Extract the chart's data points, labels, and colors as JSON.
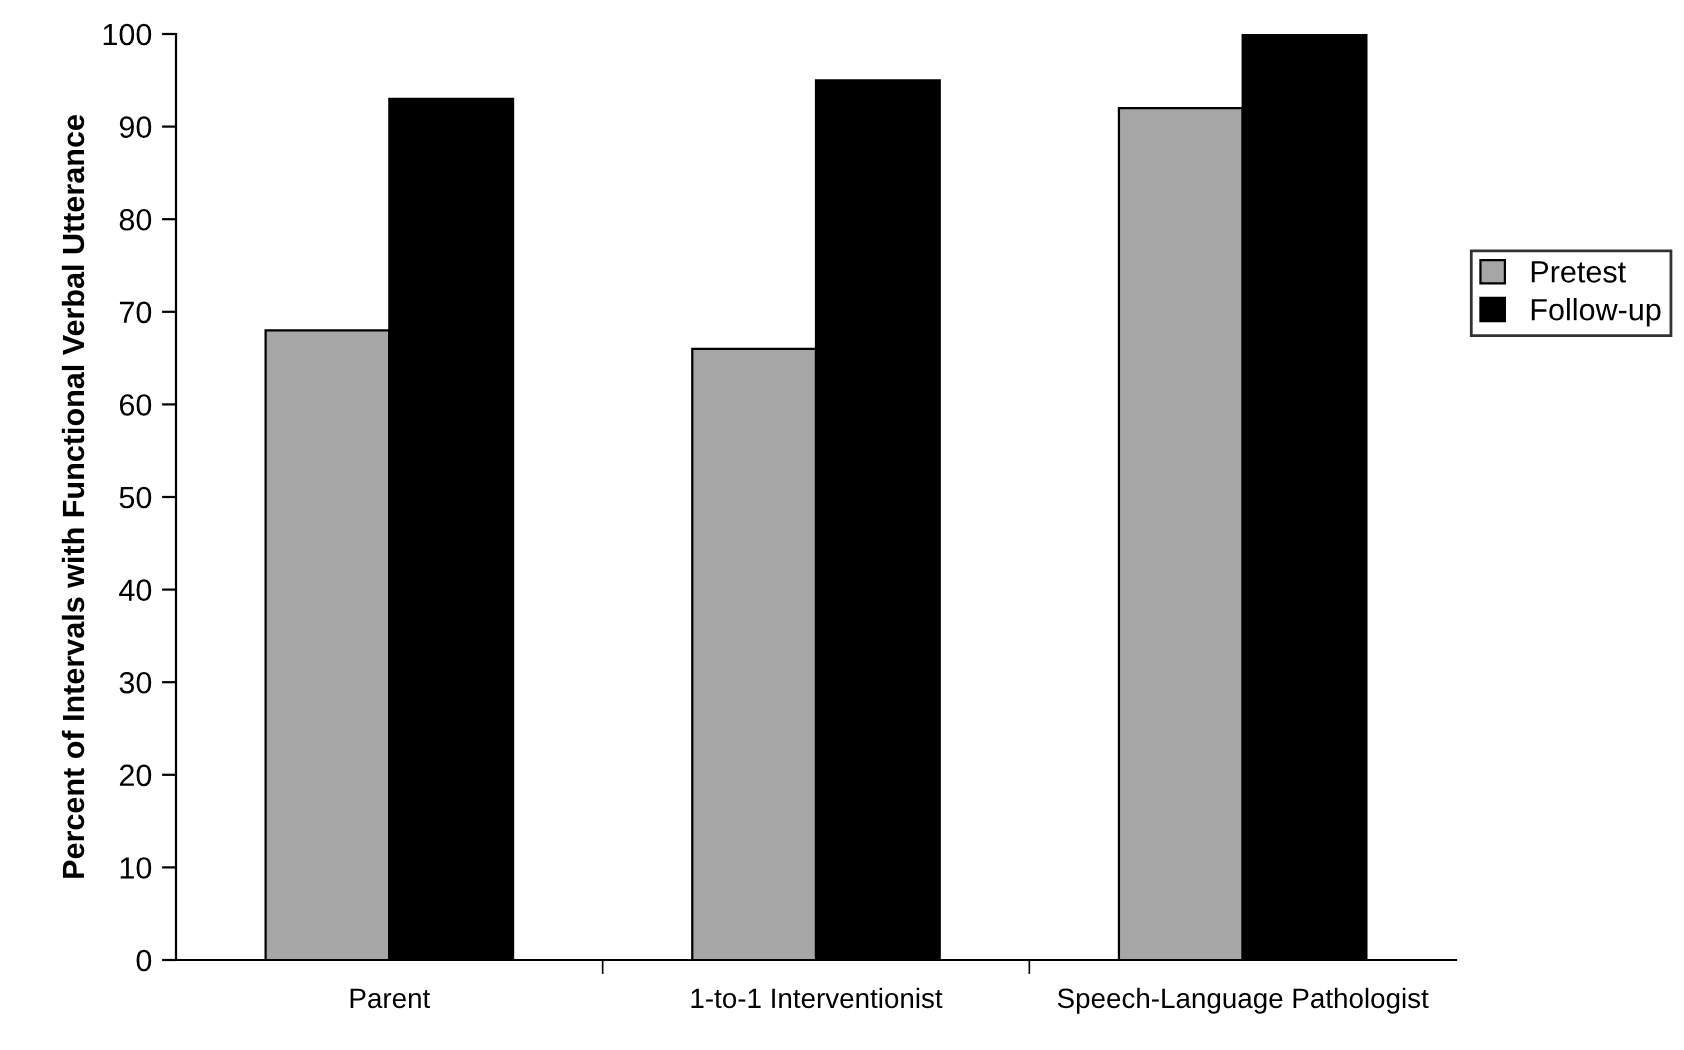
{
  "chart_data": {
    "type": "bar",
    "ylabel": "Percent of Intervals with Functional Verbal Utterance",
    "categories": [
      "Parent",
      "1-to-1 Interventionist",
      "Speech-Language Pathologist"
    ],
    "series": [
      {
        "name": "Pretest",
        "color": "#a6a6a6",
        "values": [
          68,
          66,
          92
        ]
      },
      {
        "name": "Follow-up",
        "color": "#000000",
        "values": [
          93,
          95,
          100
        ]
      }
    ],
    "ylim": [
      0,
      100
    ],
    "yticks": [
      0,
      10,
      20,
      30,
      40,
      50,
      60,
      70,
      80,
      90,
      100
    ],
    "grid": false,
    "legend": "right"
  }
}
